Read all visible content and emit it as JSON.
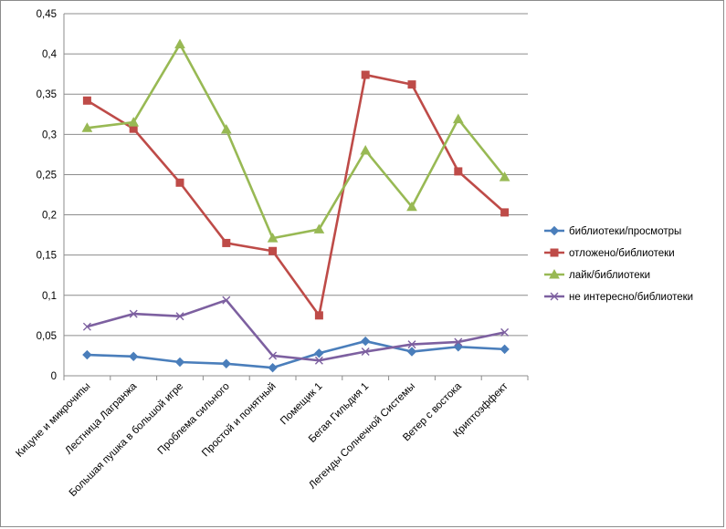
{
  "chart_data": {
    "type": "line",
    "title": "",
    "xlabel": "",
    "ylabel": "",
    "ylim": [
      0,
      0.45
    ],
    "ytick_step": 0.05,
    "ytick_labels": [
      "0",
      "0,05",
      "0,1",
      "0,15",
      "0,2",
      "0,25",
      "0,3",
      "0,35",
      "0,4",
      "0,45"
    ],
    "grid": "horizontal",
    "legend_position": "right",
    "categories": [
      "Кицуне и микрочипы",
      "Лестница Лагранжа",
      "Большая пушка в большой игре",
      "Проблема сильного",
      "Простой и понятный",
      "Помещик 1",
      "Бегая Гильдия 1",
      "Легенды Солнечной Системы",
      "Ветер с востока",
      "Криптоэффект"
    ],
    "series": [
      {
        "name": "библиотеки/просмотры",
        "color": "#4a7ebb",
        "marker": "diamond",
        "values": [
          0.026,
          0.024,
          0.017,
          0.015,
          0.01,
          0.028,
          0.043,
          0.03,
          0.036,
          0.033
        ]
      },
      {
        "name": "отложено/библиотеки",
        "color": "#be4b48",
        "marker": "square",
        "values": [
          0.342,
          0.307,
          0.24,
          0.165,
          0.155,
          0.075,
          0.374,
          0.362,
          0.254,
          0.203
        ]
      },
      {
        "name": "лайк/библиотеки",
        "color": "#98b954",
        "marker": "triangle",
        "values": [
          0.308,
          0.315,
          0.412,
          0.306,
          0.171,
          0.182,
          0.28,
          0.21,
          0.319,
          0.247
        ]
      },
      {
        "name": "не интересно/библиотеки",
        "color": "#7d60a0",
        "marker": "x",
        "values": [
          0.061,
          0.077,
          0.074,
          0.094,
          0.025,
          0.019,
          0.03,
          0.039,
          0.042,
          0.054
        ]
      }
    ]
  }
}
